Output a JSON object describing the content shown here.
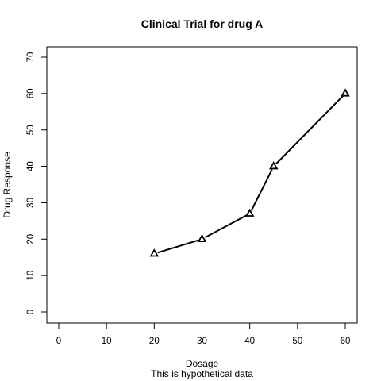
{
  "chart_data": {
    "type": "line",
    "title": "Clinical Trial for drug A",
    "xlabel": "Dosage",
    "ylabel": "Drug Response",
    "subtitle": "This is hypothetical data",
    "xlim": [
      0,
      60
    ],
    "ylim": [
      0,
      70
    ],
    "x_ticks": [
      0,
      10,
      20,
      30,
      40,
      50,
      60
    ],
    "y_ticks": [
      0,
      10,
      20,
      30,
      40,
      50,
      60,
      70
    ],
    "x": [
      20,
      30,
      40,
      45,
      60
    ],
    "y": [
      16,
      20,
      27,
      40,
      60
    ],
    "marker": "open-triangle",
    "line_color": "#000000",
    "grid": false,
    "legend": "none"
  }
}
